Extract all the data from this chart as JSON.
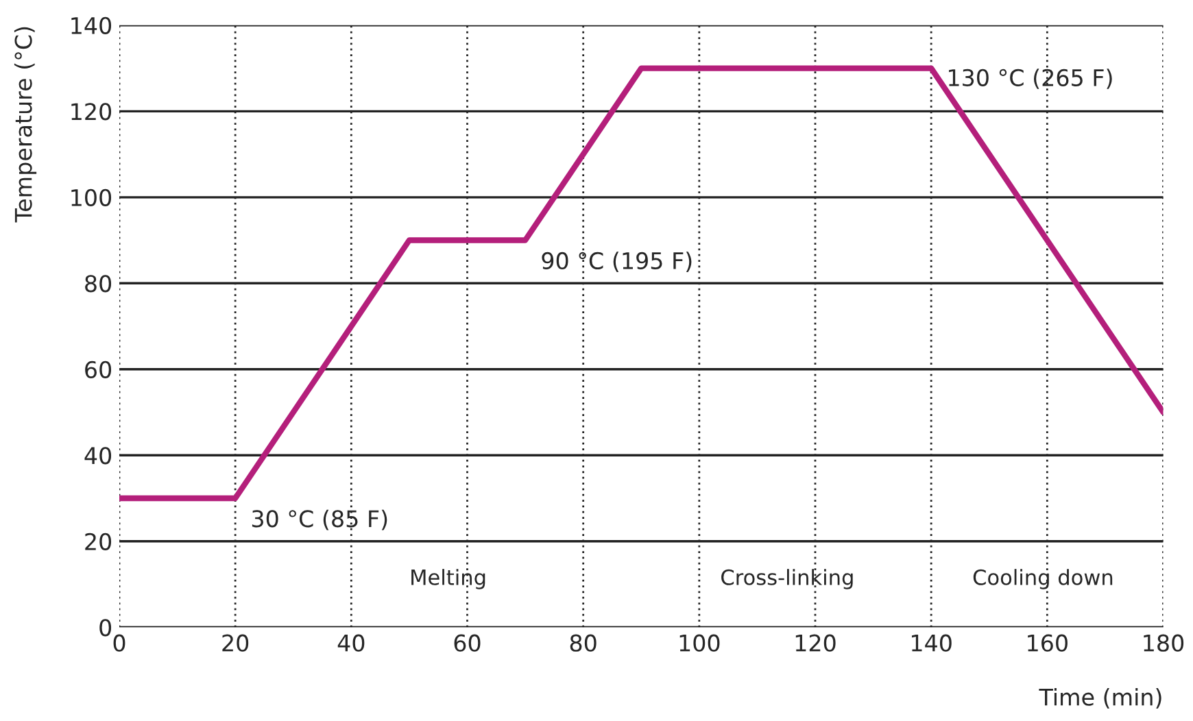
{
  "chart_data": {
    "type": "line",
    "xlabel": "Time (min)",
    "ylabel": "Temperature (°C)",
    "x": [
      0,
      20,
      50,
      70,
      90,
      140,
      180
    ],
    "series": [
      {
        "color": "#b41f7b",
        "values": [
          30,
          30,
          90,
          90,
          130,
          130,
          50
        ]
      }
    ],
    "xlim": [
      0,
      180
    ],
    "ylim": [
      0,
      140
    ],
    "xticks": [
      0,
      20,
      40,
      60,
      80,
      100,
      120,
      140,
      160,
      180
    ],
    "yticks": [
      0,
      20,
      40,
      60,
      80,
      100,
      120,
      140
    ],
    "grid": true,
    "marker": "none",
    "line_style": "solid",
    "annotations": [
      {
        "text": "30 °C (85 F)",
        "x": 20,
        "y": 30
      },
      {
        "text": "90 °C (195 F)",
        "x": 70,
        "y": 90
      },
      {
        "text": "130 °C (265 F)",
        "x": 140,
        "y": 130
      },
      "Melting",
      "Cross-linking",
      "Cooling down"
    ]
  }
}
